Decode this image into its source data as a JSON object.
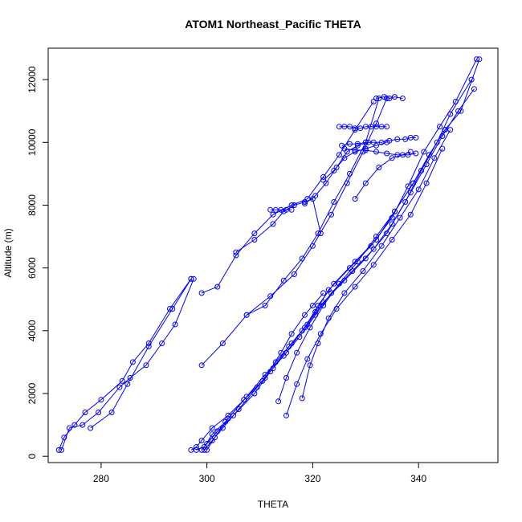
{
  "chart_data": {
    "type": "scatter",
    "title": "ATOM1 Northeast_Pacific THETA",
    "xlabel": "THETA",
    "ylabel": "Altitude (m)",
    "xlim": [
      270,
      355
    ],
    "ylim": [
      -200,
      13000
    ],
    "xticks": [
      280,
      300,
      320,
      340
    ],
    "yticks": [
      0,
      2000,
      4000,
      6000,
      8000,
      10000,
      12000
    ],
    "grid": false,
    "legend": "none",
    "color": "#0000ff",
    "marker": "open-circle",
    "connected": true,
    "series": [
      {
        "x": [
          272.0,
          273.0,
          275.0,
          277.0,
          280.0,
          284.0,
          286.0,
          289.0,
          293.0,
          297.0
        ],
        "y": [
          200,
          600,
          1000,
          1400,
          1800,
          2400,
          3000,
          3600,
          4700,
          5650
        ]
      },
      {
        "x": [
          272.5,
          274.0,
          276.5,
          279.5,
          283.5,
          285.5,
          288.5,
          291.5,
          294.0,
          297.5
        ],
        "y": [
          200,
          900,
          1000,
          1400,
          2200,
          2500,
          2900,
          3600,
          4200,
          5650
        ]
      },
      {
        "x": [
          278.0,
          282.0,
          285.0,
          289.0,
          293.5,
          297.0
        ],
        "y": [
          900,
          1400,
          2300,
          3500,
          4700,
          5650
        ]
      },
      {
        "x": [
          297.0,
          298.0,
          299.0,
          301.0,
          304.0,
          307.0,
          311.0,
          314.0,
          316.0,
          318.5,
          320.0,
          322.0
        ],
        "y": [
          200,
          300,
          500,
          900,
          1300,
          1800,
          2500,
          3300,
          3900,
          4500,
          4800,
          5200
        ]
      },
      {
        "x": [
          299.0,
          300.0,
          302.0,
          305.0,
          309.0,
          312.0,
          315.0,
          318.0,
          320.5,
          323.0,
          327.0,
          331.0,
          335.0,
          338.0,
          341.0,
          344.0,
          347.0,
          351.0
        ],
        "y": [
          200,
          400,
          800,
          1300,
          2000,
          2700,
          3300,
          4000,
          4600,
          5300,
          6000,
          6700,
          7600,
          8600,
          9700,
          10500,
          11300,
          12650
        ]
      },
      {
        "x": [
          298.0,
          299.5,
          301.0,
          303.5,
          307.0,
          310.5,
          313.0,
          316.0,
          319.0,
          322.0,
          326.0,
          330.0,
          334.0,
          337.5,
          340.5,
          343.5,
          346.0,
          350.0
        ],
        "y": [
          200,
          300,
          700,
          1100,
          1800,
          2400,
          3000,
          3600,
          4200,
          4900,
          5600,
          6300,
          7100,
          8100,
          9100,
          10000,
          10900,
          12000
        ]
      },
      {
        "x": [
          299.5,
          301.0,
          303.0,
          306.0,
          309.5,
          312.5,
          315.5,
          318.5,
          321.0,
          324.0,
          328.0,
          332.0,
          335.5,
          339.0,
          342.0,
          345.0,
          348.0,
          351.5
        ],
        "y": [
          200,
          500,
          900,
          1500,
          2200,
          2800,
          3500,
          4100,
          4800,
          5500,
          6200,
          6900,
          7800,
          8700,
          9600,
          10400,
          11000,
          12650
        ]
      },
      {
        "x": [
          300.0,
          301.5,
          304.0,
          307.5,
          311.0,
          314.5,
          317.5,
          320.5,
          323.5,
          327.5,
          331.5,
          335.0,
          338.5,
          341.5,
          344.5,
          347.5,
          350.5
        ],
        "y": [
          200,
          600,
          1200,
          1900,
          2600,
          3200,
          3800,
          4500,
          5200,
          5900,
          6600,
          7400,
          8400,
          9300,
          10200,
          11000,
          11700
        ]
      },
      {
        "x": [
          313.5,
          315.0,
          317.0,
          319.5,
          322.0,
          325.0,
          328.5,
          332.0,
          335.5,
          339.0,
          342.0,
          345.0
        ],
        "y": [
          1750,
          2500,
          3300,
          4100,
          4800,
          5500,
          6200,
          7000,
          7800,
          8700,
          9600,
          10400
        ]
      },
      {
        "x": [
          318.0,
          319.5,
          321.0,
          323.0,
          326.0,
          329.5,
          333.0,
          336.5,
          340.0,
          343.0,
          346.0
        ],
        "y": [
          1850,
          2900,
          3600,
          4400,
          5200,
          5900,
          6700,
          7600,
          8500,
          9500,
          10400
        ]
      },
      {
        "x": [
          315.0,
          317.0,
          319.0,
          321.5,
          324.5,
          328.0,
          331.5,
          335.0,
          338.5,
          341.5,
          344.5
        ],
        "y": [
          1300,
          2300,
          3100,
          3900,
          4700,
          5400,
          6100,
          6900,
          7700,
          8700,
          9800
        ]
      },
      {
        "x": [
          299.0,
          303.0,
          307.5,
          312.0,
          316.5,
          320.0,
          323.5,
          326.5,
          329.5,
          332.0,
          334.0
        ],
        "y": [
          2900,
          3600,
          4500,
          5100,
          5800,
          6700,
          7700,
          8700,
          9700,
          10600,
          11400
        ]
      },
      {
        "x": [
          307.5,
          311.0,
          314.5,
          318.0,
          321.0,
          324.0,
          327.0,
          330.0,
          332.5
        ],
        "y": [
          4500,
          4800,
          5600,
          6300,
          7100,
          8100,
          9000,
          10000,
          11400
        ]
      },
      {
        "x": [
          299.0,
          302.0,
          305.5,
          309.0,
          312.5,
          316.0,
          319.0,
          322.0,
          325.0,
          328.0,
          331.5
        ],
        "y": [
          5200,
          5400,
          6400,
          7100,
          7700,
          8000,
          8200,
          8900,
          9600,
          10400,
          11300
        ]
      },
      {
        "x": [
          305.5,
          309.0,
          312.5,
          314.5,
          316.5,
          318.5,
          320.0,
          321.5
        ],
        "y": [
          6500,
          6900,
          7400,
          7800,
          8000,
          8100,
          8200,
          7100
        ]
      },
      {
        "x": [
          312.0,
          313.0,
          314.0,
          315.0,
          316.0
        ],
        "y": [
          7850,
          7850,
          7850,
          7850,
          7850
        ]
      },
      {
        "x": [
          318.5,
          320.5,
          322.5,
          324.5,
          326.5,
          328.5,
          330.5
        ],
        "y": [
          8050,
          8300,
          8700,
          9200,
          9700,
          9900,
          10000
        ]
      },
      {
        "x": [
          322.0,
          324.0,
          326.0,
          328.0,
          330.0,
          332.0,
          334.0
        ],
        "y": [
          8800,
          9100,
          9500,
          9700,
          9800,
          9900,
          10000
        ]
      },
      {
        "x": [
          325.0,
          326.0,
          327.0,
          328.0,
          329.0,
          330.0,
          331.0,
          332.0,
          333.0,
          334.0
        ],
        "y": [
          10500,
          10500,
          10500,
          10450,
          10450,
          10500,
          10500,
          10500,
          10500,
          10500
        ]
      },
      {
        "x": [
          325.5,
          327.0,
          328.5,
          330.0,
          331.5,
          333.0,
          334.5,
          336.0,
          337.5,
          338.5,
          339.5
        ],
        "y": [
          9900,
          9950,
          9950,
          10000,
          10000,
          10000,
          10050,
          10100,
          10100,
          10150,
          10150
        ]
      },
      {
        "x": [
          326.0,
          328.0,
          330.0,
          332.0,
          334.0,
          336.0,
          338.0,
          339.5
        ],
        "y": [
          9800,
          9750,
          9750,
          9700,
          9650,
          9600,
          9600,
          9650
        ]
      },
      {
        "x": [
          328.0,
          330.0,
          332.5,
          335.0,
          337.0,
          338.5
        ],
        "y": [
          8200,
          8700,
          9200,
          9500,
          9600,
          9700
        ]
      },
      {
        "x": [
          332.0,
          333.5,
          334.5,
          335.5,
          337.0
        ],
        "y": [
          11400,
          11450,
          11400,
          11450,
          11400
        ]
      }
    ]
  }
}
